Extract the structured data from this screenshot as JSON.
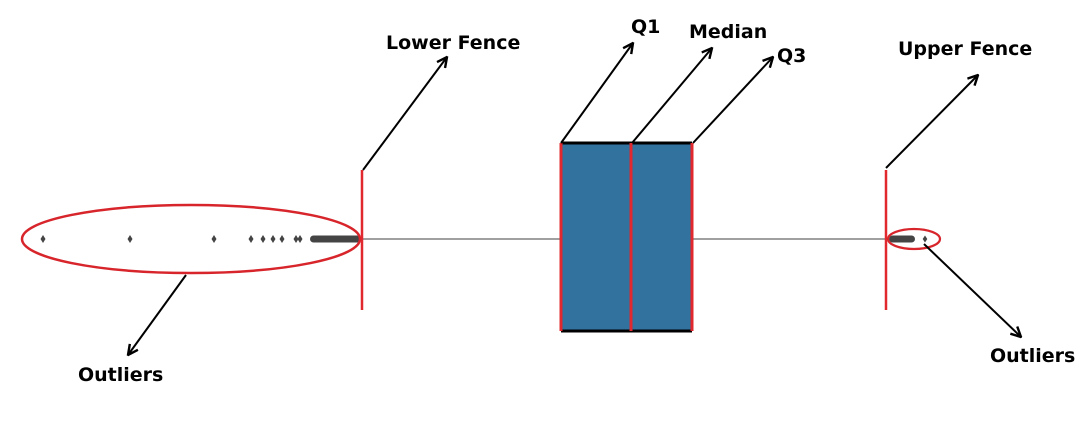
{
  "labels": {
    "lower_fence": "Lower Fence",
    "q1": "Q1",
    "median": "Median",
    "q3": "Q3",
    "upper_fence": "Upper Fence",
    "outliers_left": "Outliers",
    "outliers_right": "Outliers"
  },
  "colors": {
    "box_fill": "#31729f",
    "fence_and_box_edges": "#e0282e",
    "box_outline": "#000000",
    "whisker": "#808080",
    "outlier_marker": "#444444",
    "annotation_arrow": "#000000",
    "outlier_ellipse": "#d7252b"
  }
}
